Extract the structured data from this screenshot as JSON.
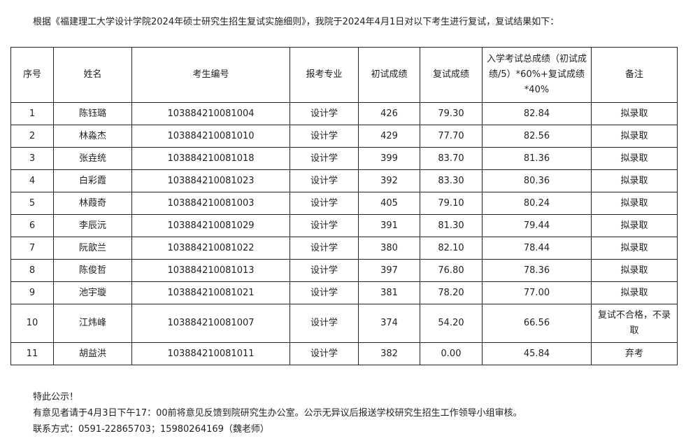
{
  "intro": "根据《福建理工大学设计学院2024年硕士研究生招生复试实施细则》，我院于2024年4月1日对以下考生进行复试，复试结果如下：",
  "headers": [
    "序号",
    "姓名",
    "考生编号",
    "报考专业",
    "初试成绩",
    "复试成绩",
    "入学考试总成绩（初试成绩/5）*60%+复试成绩*40%",
    "备注"
  ],
  "rows": [
    [
      "1",
      "陈钰璐",
      "103884210081004",
      "设计学",
      "426",
      "79.30",
      "82.84",
      "拟录取"
    ],
    [
      "2",
      "林淼杰",
      "103884210081010",
      "设计学",
      "429",
      "77.70",
      "82.56",
      "拟录取"
    ],
    [
      "3",
      "张垚统",
      "103884210081018",
      "设计学",
      "399",
      "83.70",
      "81.36",
      "拟录取"
    ],
    [
      "4",
      "白彩霞",
      "103884210081023",
      "设计学",
      "392",
      "83.30",
      "80.36",
      "拟录取"
    ],
    [
      "5",
      "林葭奇",
      "103884210081003",
      "设计学",
      "405",
      "79.10",
      "80.24",
      "拟录取"
    ],
    [
      "6",
      "李辰沅",
      "103884210081029",
      "设计学",
      "391",
      "81.30",
      "79.44",
      "拟录取"
    ],
    [
      "7",
      "阮歆兰",
      "103884210081022",
      "设计学",
      "380",
      "82.10",
      "78.44",
      "拟录取"
    ],
    [
      "8",
      "陈俊哲",
      "103884210081013",
      "设计学",
      "397",
      "76.80",
      "78.36",
      "拟录取"
    ],
    [
      "9",
      "池宇璇",
      "103884210081021",
      "设计学",
      "381",
      "78.20",
      "77.00",
      "拟录取"
    ],
    [
      "10",
      "江炜峰",
      "103884210081007",
      "设计学",
      "374",
      "54.20",
      "66.56",
      "复试不合格，不录取"
    ],
    [
      "11",
      "胡益洪",
      "103884210081011",
      "设计学",
      "382",
      "0.00",
      "45.84",
      "弃考"
    ]
  ],
  "footer": {
    "line1": "特此公示！",
    "line2": "有意见者请于4月3日下午17：00前将意见反馈到院研究生办公室。公示无异议后报送学校研究生招生工作领导小组审核。",
    "line3": "联系方式：0591-22865703；15980264169（魏老师）"
  }
}
